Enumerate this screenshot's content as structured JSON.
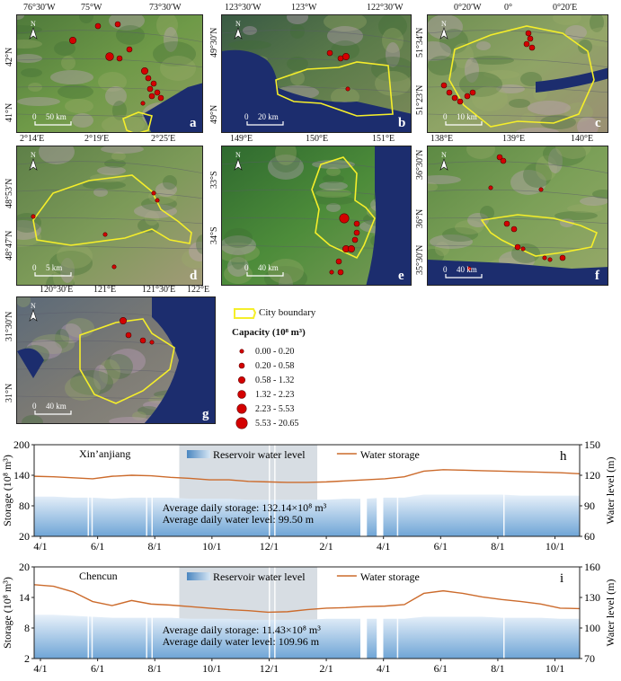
{
  "maps": [
    {
      "id": "a",
      "label": "a",
      "top_ticks": [
        "76°30′W",
        "75°W",
        "73°30′W"
      ],
      "left_ticks": [
        "42°N",
        "41°N"
      ],
      "scale": "50 km",
      "capacities": [
        1.32,
        0.58,
        0.58,
        0.58,
        2.23,
        0.58,
        1.32,
        0.58,
        0.58,
        0.58,
        0.58,
        0.58,
        0.58,
        0.2
      ]
    },
    {
      "id": "b",
      "label": "b",
      "top_ticks": [
        "123°30′W",
        "123°W",
        "122°30′W"
      ],
      "left_ticks": [
        "49°30′N",
        "49°N"
      ],
      "scale": "20 km",
      "capacities": [
        0.58,
        0.58,
        1.32,
        0.2
      ]
    },
    {
      "id": "c",
      "label": "c",
      "top_ticks": [
        "0°20′W",
        "0°",
        "0°20′E"
      ],
      "left_ticks": [
        "51°34′N",
        "51°23′N"
      ],
      "scale": "10 km",
      "capacities": [
        0.58,
        0.58,
        0.58,
        0.58,
        0.58,
        0.58,
        0.58,
        0.58,
        0.58,
        0.58
      ]
    },
    {
      "id": "d",
      "label": "d",
      "top_ticks": [
        "2°14′E",
        "2°19′E",
        "2°25′E"
      ],
      "left_ticks": [
        "48°53′N",
        "48°47′N"
      ],
      "scale": "5 km",
      "capacities": [
        0.2,
        0.2,
        0.2,
        0.2,
        0.2
      ]
    },
    {
      "id": "e",
      "label": "e",
      "top_ticks": [
        "149°E",
        "150°E",
        "151°E"
      ],
      "left_ticks": [
        "33°S",
        "34°S"
      ],
      "scale": "40 km",
      "capacities": [
        5.53,
        1.32,
        1.32,
        0.58,
        0.58,
        0.58,
        0.2,
        0.58,
        0.58
      ]
    },
    {
      "id": "f",
      "label": "f",
      "top_ticks": [
        "138°E",
        "139°E",
        "140°E"
      ],
      "left_ticks": [
        "36°30′N",
        "36°N",
        "35°30′N"
      ],
      "scale": "40 km",
      "capacities": [
        0.58,
        0.58,
        0.2,
        0.2,
        0.58,
        0.58,
        0.58,
        0.2,
        0.2,
        0.2,
        0.58,
        0.2
      ]
    },
    {
      "id": "g",
      "label": "g",
      "top_ticks": [
        "120°30′E",
        "121°E",
        "121°30′E",
        "122°E"
      ],
      "left_ticks": [
        "31°30′N",
        "31°N"
      ],
      "scale": "40 km",
      "capacities": [
        1.32,
        0.58,
        0.58,
        0.2
      ]
    }
  ],
  "legend": {
    "boundary_label": "City boundary",
    "capacity_title": "Capacity (10⁸ m³)",
    "classes": [
      "0.00 - 0.20",
      "0.20 - 0.58",
      "0.58 - 1.32",
      "1.32 - 2.23",
      "2.23 - 5.53",
      "5.53 - 20.65"
    ]
  },
  "colors": {
    "reservoir_dot": "#d40000",
    "boundary": "#f5ee2a",
    "storage_line": "#cc6b2c",
    "water_fill": "#6fa5d6",
    "highlight": "#d7dde3"
  },
  "chart_data": [
    {
      "panel": "h",
      "type": "area+line",
      "title": "Xin’anjiang",
      "ylabel": "Storage (10⁸ m³)",
      "y2label": "Water level (m)",
      "ylim": [
        20,
        200
      ],
      "yticks": [
        20,
        80,
        140,
        200
      ],
      "y2lim": [
        60,
        150
      ],
      "y2ticks": [
        60,
        90,
        120,
        150
      ],
      "xticks": [
        "4/1",
        "6/1",
        "8/1",
        "10/1",
        "12/1",
        "2/1",
        "4/1",
        "6/1",
        "8/1",
        "10/1"
      ],
      "legend": [
        "Reservoir water level",
        "Water storage"
      ],
      "annotation": [
        "Average daily storage: 132.14×10⁸ m³",
        "Average daily water level: 99.50 m"
      ],
      "storage": [
        138,
        137,
        135,
        133,
        138,
        140,
        139,
        136,
        134,
        131,
        131,
        128,
        127,
        126,
        126,
        127,
        129,
        131,
        133,
        137,
        148,
        151,
        150,
        149,
        148,
        147,
        146,
        145,
        143
      ],
      "water_level": [
        99,
        99,
        98,
        98,
        97,
        98,
        98,
        98,
        97,
        97,
        97,
        96,
        96,
        96,
        96,
        96,
        97,
        97,
        98,
        98,
        101,
        101,
        101,
        101,
        101,
        100,
        100,
        100,
        100
      ]
    },
    {
      "panel": "i",
      "type": "area+line",
      "title": "Chencun",
      "ylabel": "Storage (10⁸ m³)",
      "y2label": "Water level (m)",
      "ylim": [
        2,
        20
      ],
      "yticks": [
        2,
        8,
        14,
        20
      ],
      "y2lim": [
        70,
        160
      ],
      "y2ticks": [
        70,
        100,
        130,
        160
      ],
      "xticks": [
        "4/1",
        "6/1",
        "8/1",
        "10/1",
        "12/1",
        "2/1",
        "4/1",
        "6/1",
        "8/1",
        "10/1"
      ],
      "legend": [
        "Reservoir water level",
        "Water storage"
      ],
      "annotation": [
        "Average daily storage: 11.43×10⁸ m³",
        "Average daily water level: 109.96  m"
      ],
      "storage": [
        16.5,
        16.2,
        15.1,
        13.2,
        12.4,
        13.4,
        12.7,
        12.5,
        12.2,
        11.9,
        11.6,
        11.4,
        11.1,
        11.2,
        11.6,
        11.9,
        12.0,
        12.2,
        12.3,
        12.6,
        14.8,
        15.3,
        14.8,
        14.1,
        13.6,
        13.2,
        12.7,
        11.9,
        11.8
      ],
      "water_level": [
        113,
        113,
        112,
        111,
        110,
        110,
        110,
        110,
        109,
        109,
        109,
        108,
        108,
        108,
        108,
        109,
        109,
        109,
        109,
        109,
        111,
        111,
        111,
        111,
        110,
        110,
        110,
        109,
        109
      ]
    }
  ]
}
